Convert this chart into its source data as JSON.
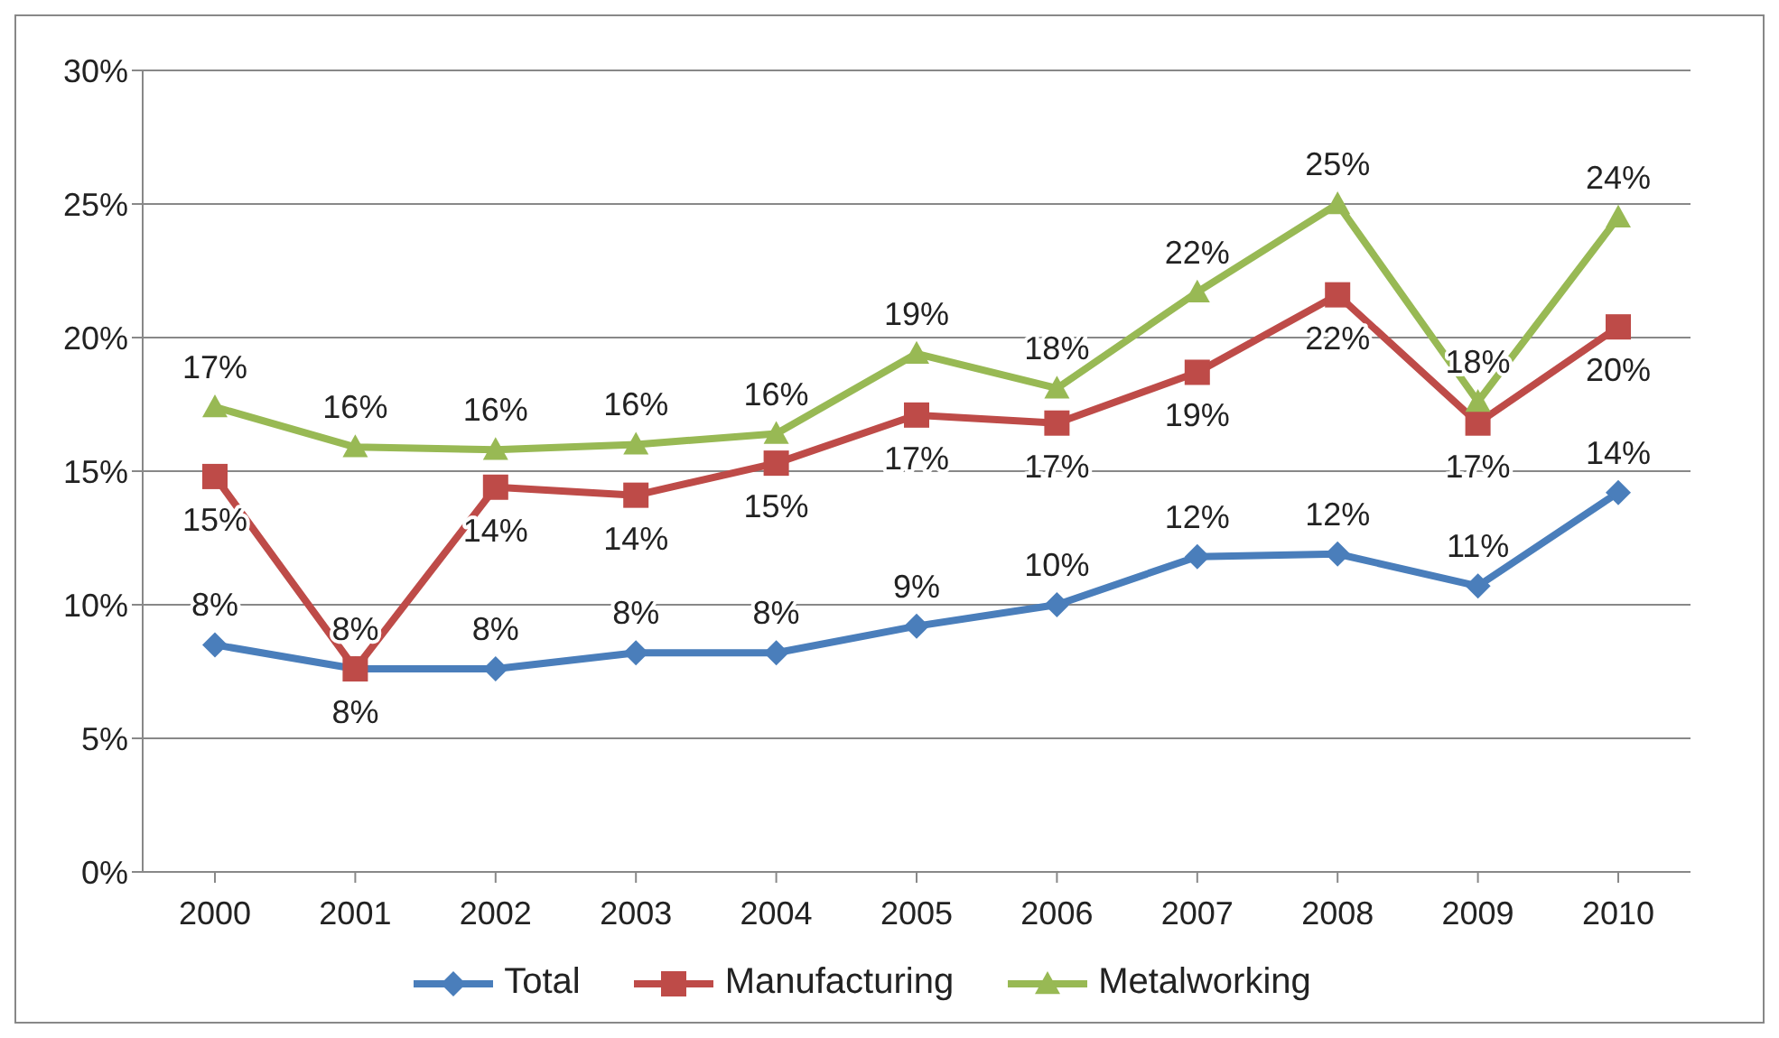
{
  "chart_data": {
    "type": "line",
    "categories": [
      "2000",
      "2001",
      "2002",
      "2003",
      "2004",
      "2005",
      "2006",
      "2007",
      "2008",
      "2009",
      "2010"
    ],
    "series": [
      {
        "name": "Total",
        "color": "#4a7ebb",
        "marker": "diamond",
        "values": [
          8.5,
          7.6,
          7.6,
          8.2,
          8.2,
          9.2,
          10.0,
          11.8,
          11.9,
          10.7,
          14.2
        ],
        "value_labels": [
          "8%",
          "8%",
          "8%",
          "8%",
          "8%",
          "9%",
          "10%",
          "12%",
          "12%",
          "11%",
          "14%"
        ]
      },
      {
        "name": "Manufacturing",
        "color": "#be4b48",
        "marker": "square",
        "values": [
          14.8,
          7.6,
          14.4,
          14.1,
          15.3,
          17.1,
          16.8,
          18.7,
          21.6,
          16.8,
          20.4
        ],
        "value_labels": [
          "15%",
          "8%",
          "14%",
          "14%",
          "15%",
          "17%",
          "17%",
          "19%",
          "22%",
          "17%",
          "20%"
        ]
      },
      {
        "name": "Metalworking",
        "color": "#98b954",
        "marker": "triangle",
        "values": [
          17.4,
          15.9,
          15.8,
          16.0,
          16.4,
          19.4,
          18.1,
          21.7,
          25.0,
          17.6,
          24.5
        ],
        "value_labels": [
          "17%",
          "16%",
          "16%",
          "16%",
          "16%",
          "19%",
          "18%",
          "22%",
          "25%",
          "18%",
          "24%"
        ]
      }
    ],
    "ylim": [
      0,
      30
    ],
    "yticks": [
      {
        "value": 0,
        "label": "0%"
      },
      {
        "value": 5,
        "label": "5%"
      },
      {
        "value": 10,
        "label": "10%"
      },
      {
        "value": 15,
        "label": "15%"
      },
      {
        "value": 20,
        "label": "20%"
      },
      {
        "value": 25,
        "label": "25%"
      },
      {
        "value": 30,
        "label": "30%"
      }
    ],
    "grid": "y",
    "legend": "bottom",
    "line_style": "solid"
  }
}
